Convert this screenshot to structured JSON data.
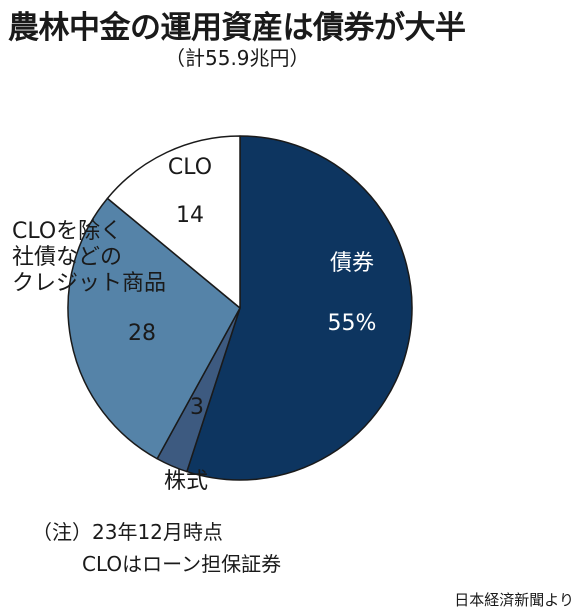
{
  "title": "農林中金の運用資産は債券が大半",
  "subtitle": "（計55.9兆円）",
  "chart_data": {
    "type": "pie",
    "total": "55.9兆円",
    "slices": [
      {
        "label": "債券",
        "value_label": "55%",
        "value": 55,
        "color": "#0d3560",
        "text_color": "#ffffff"
      },
      {
        "label": "株式",
        "value_label": "3",
        "value": 3,
        "color": "#3d5a80",
        "text_color": "#1a1a1a"
      },
      {
        "label": "CLOを除く社債などのクレジット商品",
        "label_lines": [
          "CLOを除く",
          "社債などの",
          "クレジット商品"
        ],
        "value_label": "28",
        "value": 28,
        "color": "#5583a8",
        "text_color": "#1a1a1a"
      },
      {
        "label": "CLO",
        "value_label": "14",
        "value": 14,
        "color": "#ffffff",
        "text_color": "#1a1a1a"
      }
    ]
  },
  "notes": {
    "line1": "（注）23年12月時点",
    "line2": "CLOはローン担保証券"
  },
  "source": "日本経済新聞より"
}
